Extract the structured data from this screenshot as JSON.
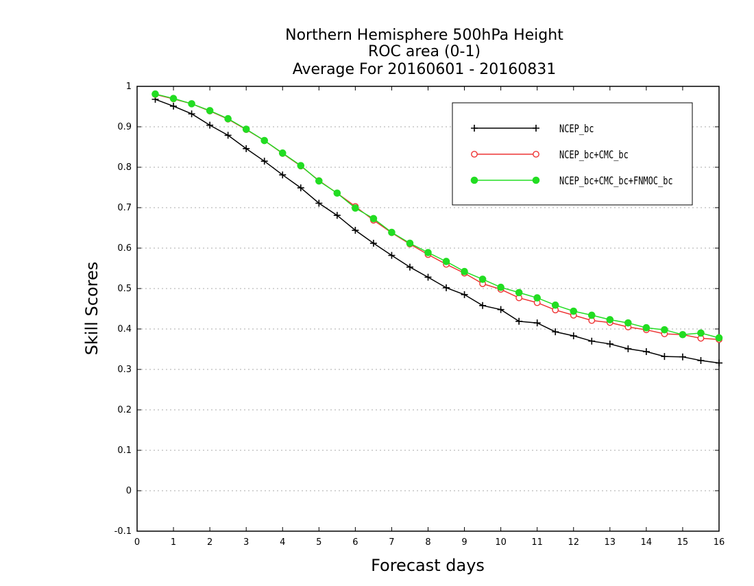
{
  "chart_data": {
    "type": "line",
    "title_lines": [
      "Northern Hemisphere 500hPa Height",
      "ROC area (0-1)",
      "Average For 20160601 - 20160831"
    ],
    "xlabel": "Forecast days",
    "ylabel": "Skill Scores",
    "xlim": [
      0,
      16
    ],
    "ylim": [
      -0.1,
      1
    ],
    "x_ticks": [
      0,
      1,
      2,
      3,
      4,
      5,
      6,
      7,
      8,
      9,
      10,
      11,
      12,
      13,
      14,
      15,
      16
    ],
    "y_ticks": [
      -0.1,
      0,
      0.1,
      0.2,
      0.3,
      0.4,
      0.5,
      0.6,
      0.7,
      0.8,
      0.9,
      1
    ],
    "y_tick_labels": [
      "-0.1",
      "0",
      "0.1",
      "0.2",
      "0.3",
      "0.4",
      "0.5",
      "0.6",
      "0.7",
      "0.8",
      "0.9",
      "1"
    ],
    "grid_y": true,
    "legend_position": "top-right",
    "x": [
      0.5,
      1.0,
      1.5,
      2.0,
      2.5,
      3.0,
      3.5,
      4.0,
      4.5,
      5.0,
      5.5,
      6.0,
      6.5,
      7.0,
      7.5,
      8.0,
      8.5,
      9.0,
      9.5,
      10.0,
      10.5,
      11.0,
      11.5,
      12.0,
      12.5,
      13.0,
      13.5,
      14.0,
      14.5,
      15.0,
      15.5,
      16.0
    ],
    "series": [
      {
        "name": "NCEP_bc",
        "color": "#000000",
        "marker": "plus",
        "values": [
          0.968,
          0.951,
          0.932,
          0.904,
          0.879,
          0.846,
          0.815,
          0.781,
          0.749,
          0.711,
          0.681,
          0.644,
          0.612,
          0.582,
          0.553,
          0.528,
          0.502,
          0.485,
          0.458,
          0.448,
          0.419,
          0.415,
          0.393,
          0.383,
          0.37,
          0.363,
          0.351,
          0.344,
          0.332,
          0.331,
          0.322,
          0.316
        ]
      },
      {
        "name": "NCEP_bc+CMC_bc",
        "color": "#ee3333",
        "marker": "open-circle",
        "values": [
          0.98,
          0.969,
          0.957,
          0.939,
          0.919,
          0.893,
          0.866,
          0.834,
          0.803,
          0.767,
          0.736,
          0.703,
          0.669,
          0.638,
          0.61,
          0.584,
          0.56,
          0.538,
          0.512,
          0.498,
          0.477,
          0.465,
          0.447,
          0.434,
          0.421,
          0.416,
          0.405,
          0.398,
          0.388,
          0.386,
          0.377,
          0.374
        ]
      },
      {
        "name": "NCEP_bc+CMC_bc+FNMOC_bc",
        "color": "#22dd22",
        "marker": "filled-circle",
        "values": [
          0.981,
          0.97,
          0.957,
          0.94,
          0.92,
          0.894,
          0.866,
          0.835,
          0.804,
          0.766,
          0.736,
          0.699,
          0.673,
          0.639,
          0.612,
          0.589,
          0.567,
          0.542,
          0.523,
          0.503,
          0.49,
          0.477,
          0.459,
          0.444,
          0.434,
          0.423,
          0.415,
          0.403,
          0.398,
          0.386,
          0.39,
          0.378
        ]
      }
    ]
  }
}
